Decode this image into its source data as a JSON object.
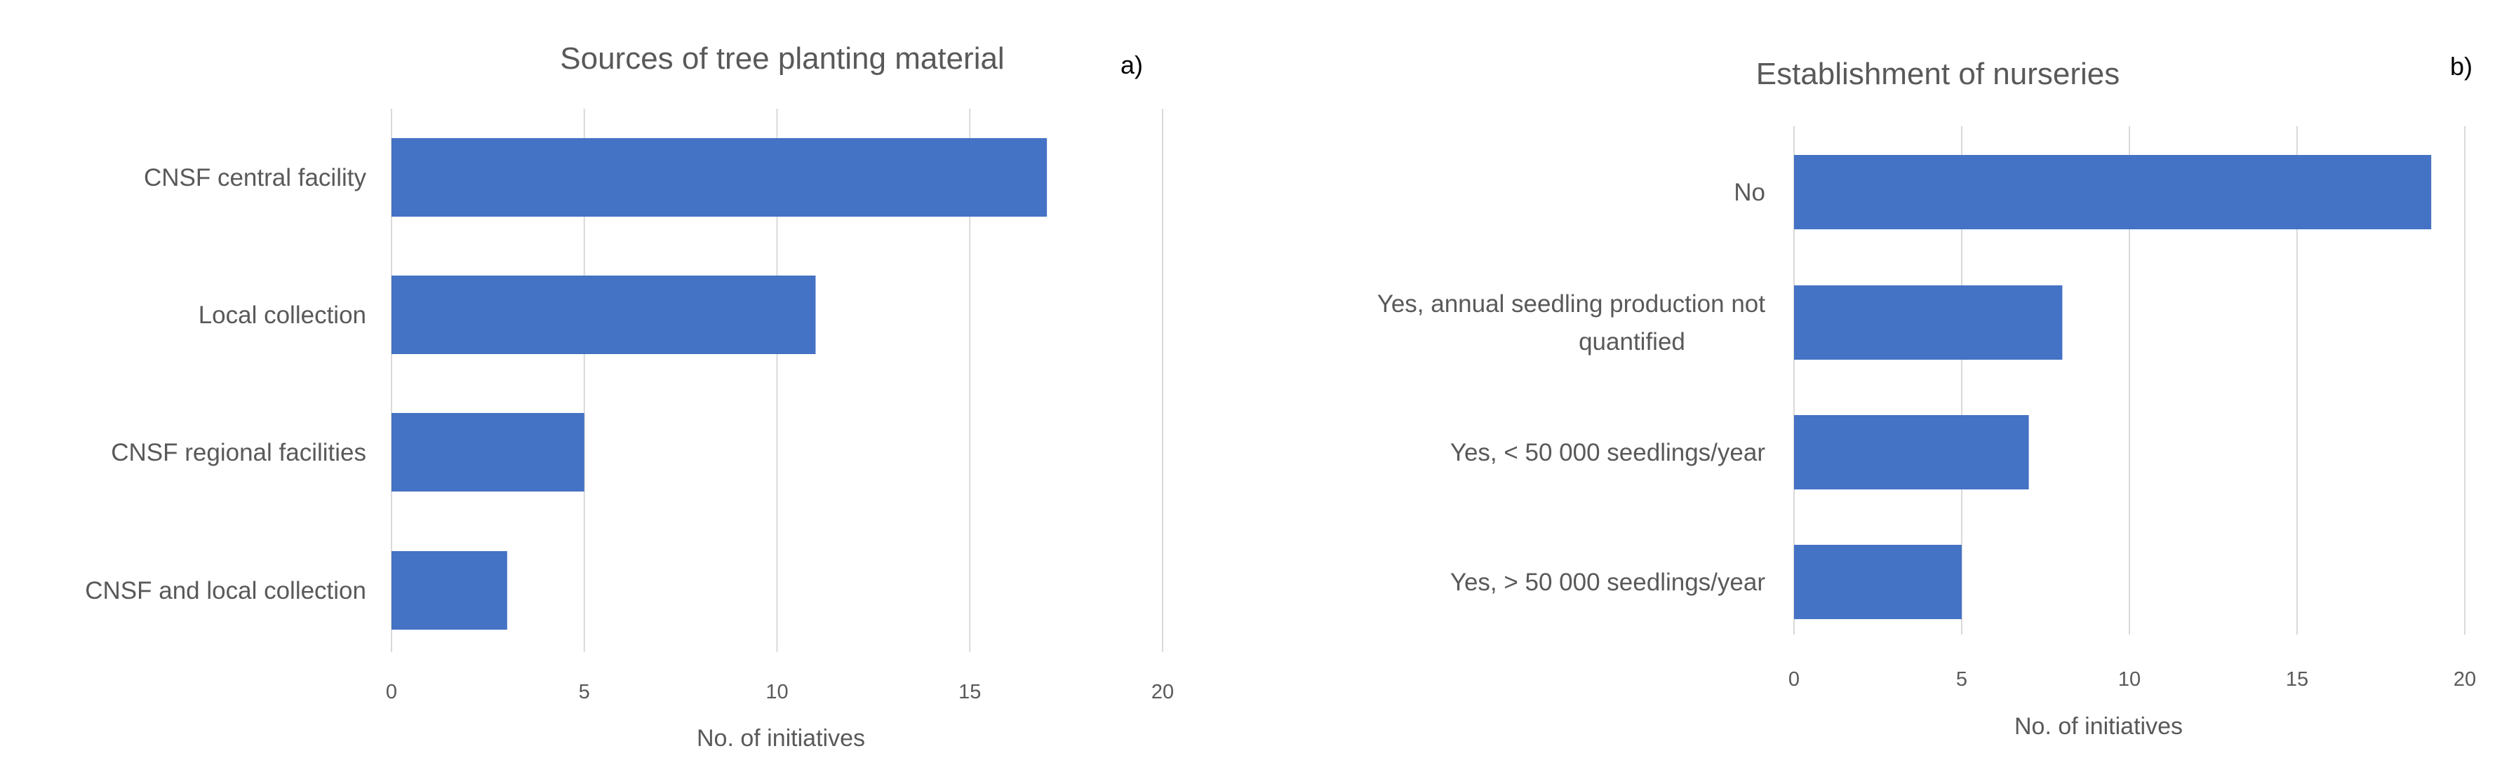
{
  "chart_data": [
    {
      "type": "bar",
      "orientation": "horizontal",
      "title": "Sources of tree planting material",
      "panel_label": "a)",
      "categories": [
        "CNSF central facility",
        "Local collection",
        "CNSF regional facilities",
        "CNSF and local collection"
      ],
      "category_lines": [
        [
          "CNSF central facility"
        ],
        [
          "Local collection"
        ],
        [
          "CNSF regional facilities"
        ],
        [
          "CNSF and local collection"
        ]
      ],
      "values": [
        17,
        11,
        5,
        3
      ],
      "xlabel": "No. of initiatives",
      "ylabel": "",
      "xlim": [
        0,
        20
      ],
      "xticks": [
        0,
        5,
        10,
        15,
        20
      ],
      "grid": true,
      "color": "#4472c4"
    },
    {
      "type": "bar",
      "orientation": "horizontal",
      "title": "Establishment of nurseries",
      "panel_label": "b)",
      "categories": [
        "No",
        "Yes, annual seedling production not quantified",
        "Yes, < 50 000 seedlings/year",
        "Yes, > 50 000 seedlings/year"
      ],
      "category_lines": [
        [
          "No"
        ],
        [
          "Yes, annual seedling production not",
          "quantified"
        ],
        [
          "Yes, < 50 000 seedlings/year"
        ],
        [
          "Yes, > 50 000 seedlings/year"
        ]
      ],
      "values": [
        19,
        8,
        7,
        5
      ],
      "xlabel": "No. of initiatives",
      "ylabel": "",
      "xlim": [
        0,
        20
      ],
      "xticks": [
        0,
        5,
        10,
        15,
        20
      ],
      "grid": true,
      "color": "#4472c4"
    }
  ]
}
